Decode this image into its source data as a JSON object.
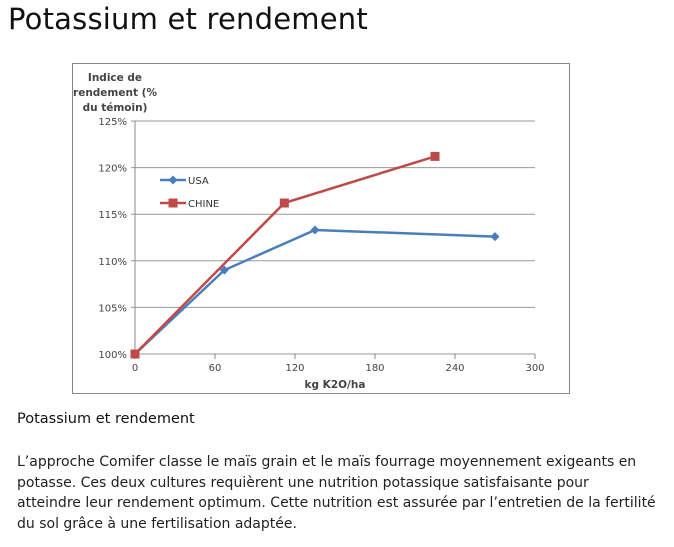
{
  "page_title": "Potassium et rendement",
  "section_title": "Potassium et rendement",
  "paragraph": "L’approche Comifer classe le maïs grain et le maïs fourrage moyennement exigeants en potasse. Ces deux cultures requièrent une nutrition potassique satisfaisante pour atteindre leur rendement optimum. Cette nutrition est assurée par l’entretien de la fertilité du sol grâce à une fertilisation adaptée.",
  "chart_data": {
    "type": "line",
    "title": "",
    "ylabel_lines": [
      "Indice de",
      "rendement (%",
      "du témoin)"
    ],
    "xlabel": "kg K2O/ha",
    "xlim": [
      0,
      300
    ],
    "ylim": [
      100,
      125
    ],
    "xticks": [
      "0",
      "60",
      "120",
      "180",
      "240",
      "300"
    ],
    "xtick_values": [
      0,
      60,
      120,
      180,
      240,
      300
    ],
    "yticks": [
      "100%",
      "105%",
      "110%",
      "115%",
      "120%",
      "125%"
    ],
    "ytick_values": [
      100,
      105,
      110,
      115,
      120,
      125
    ],
    "grid": "horizontal",
    "legend_position": "upper-left inside",
    "series": [
      {
        "name": "USA",
        "color": "#4a7ebb",
        "marker": "diamond",
        "x": [
          0,
          67,
          135,
          270
        ],
        "y": [
          100,
          109.0,
          113.3,
          112.6
        ]
      },
      {
        "name": "CHINE",
        "color": "#be4b48",
        "marker": "square",
        "x": [
          0,
          112,
          225
        ],
        "y": [
          100,
          116.2,
          121.2
        ]
      }
    ]
  }
}
